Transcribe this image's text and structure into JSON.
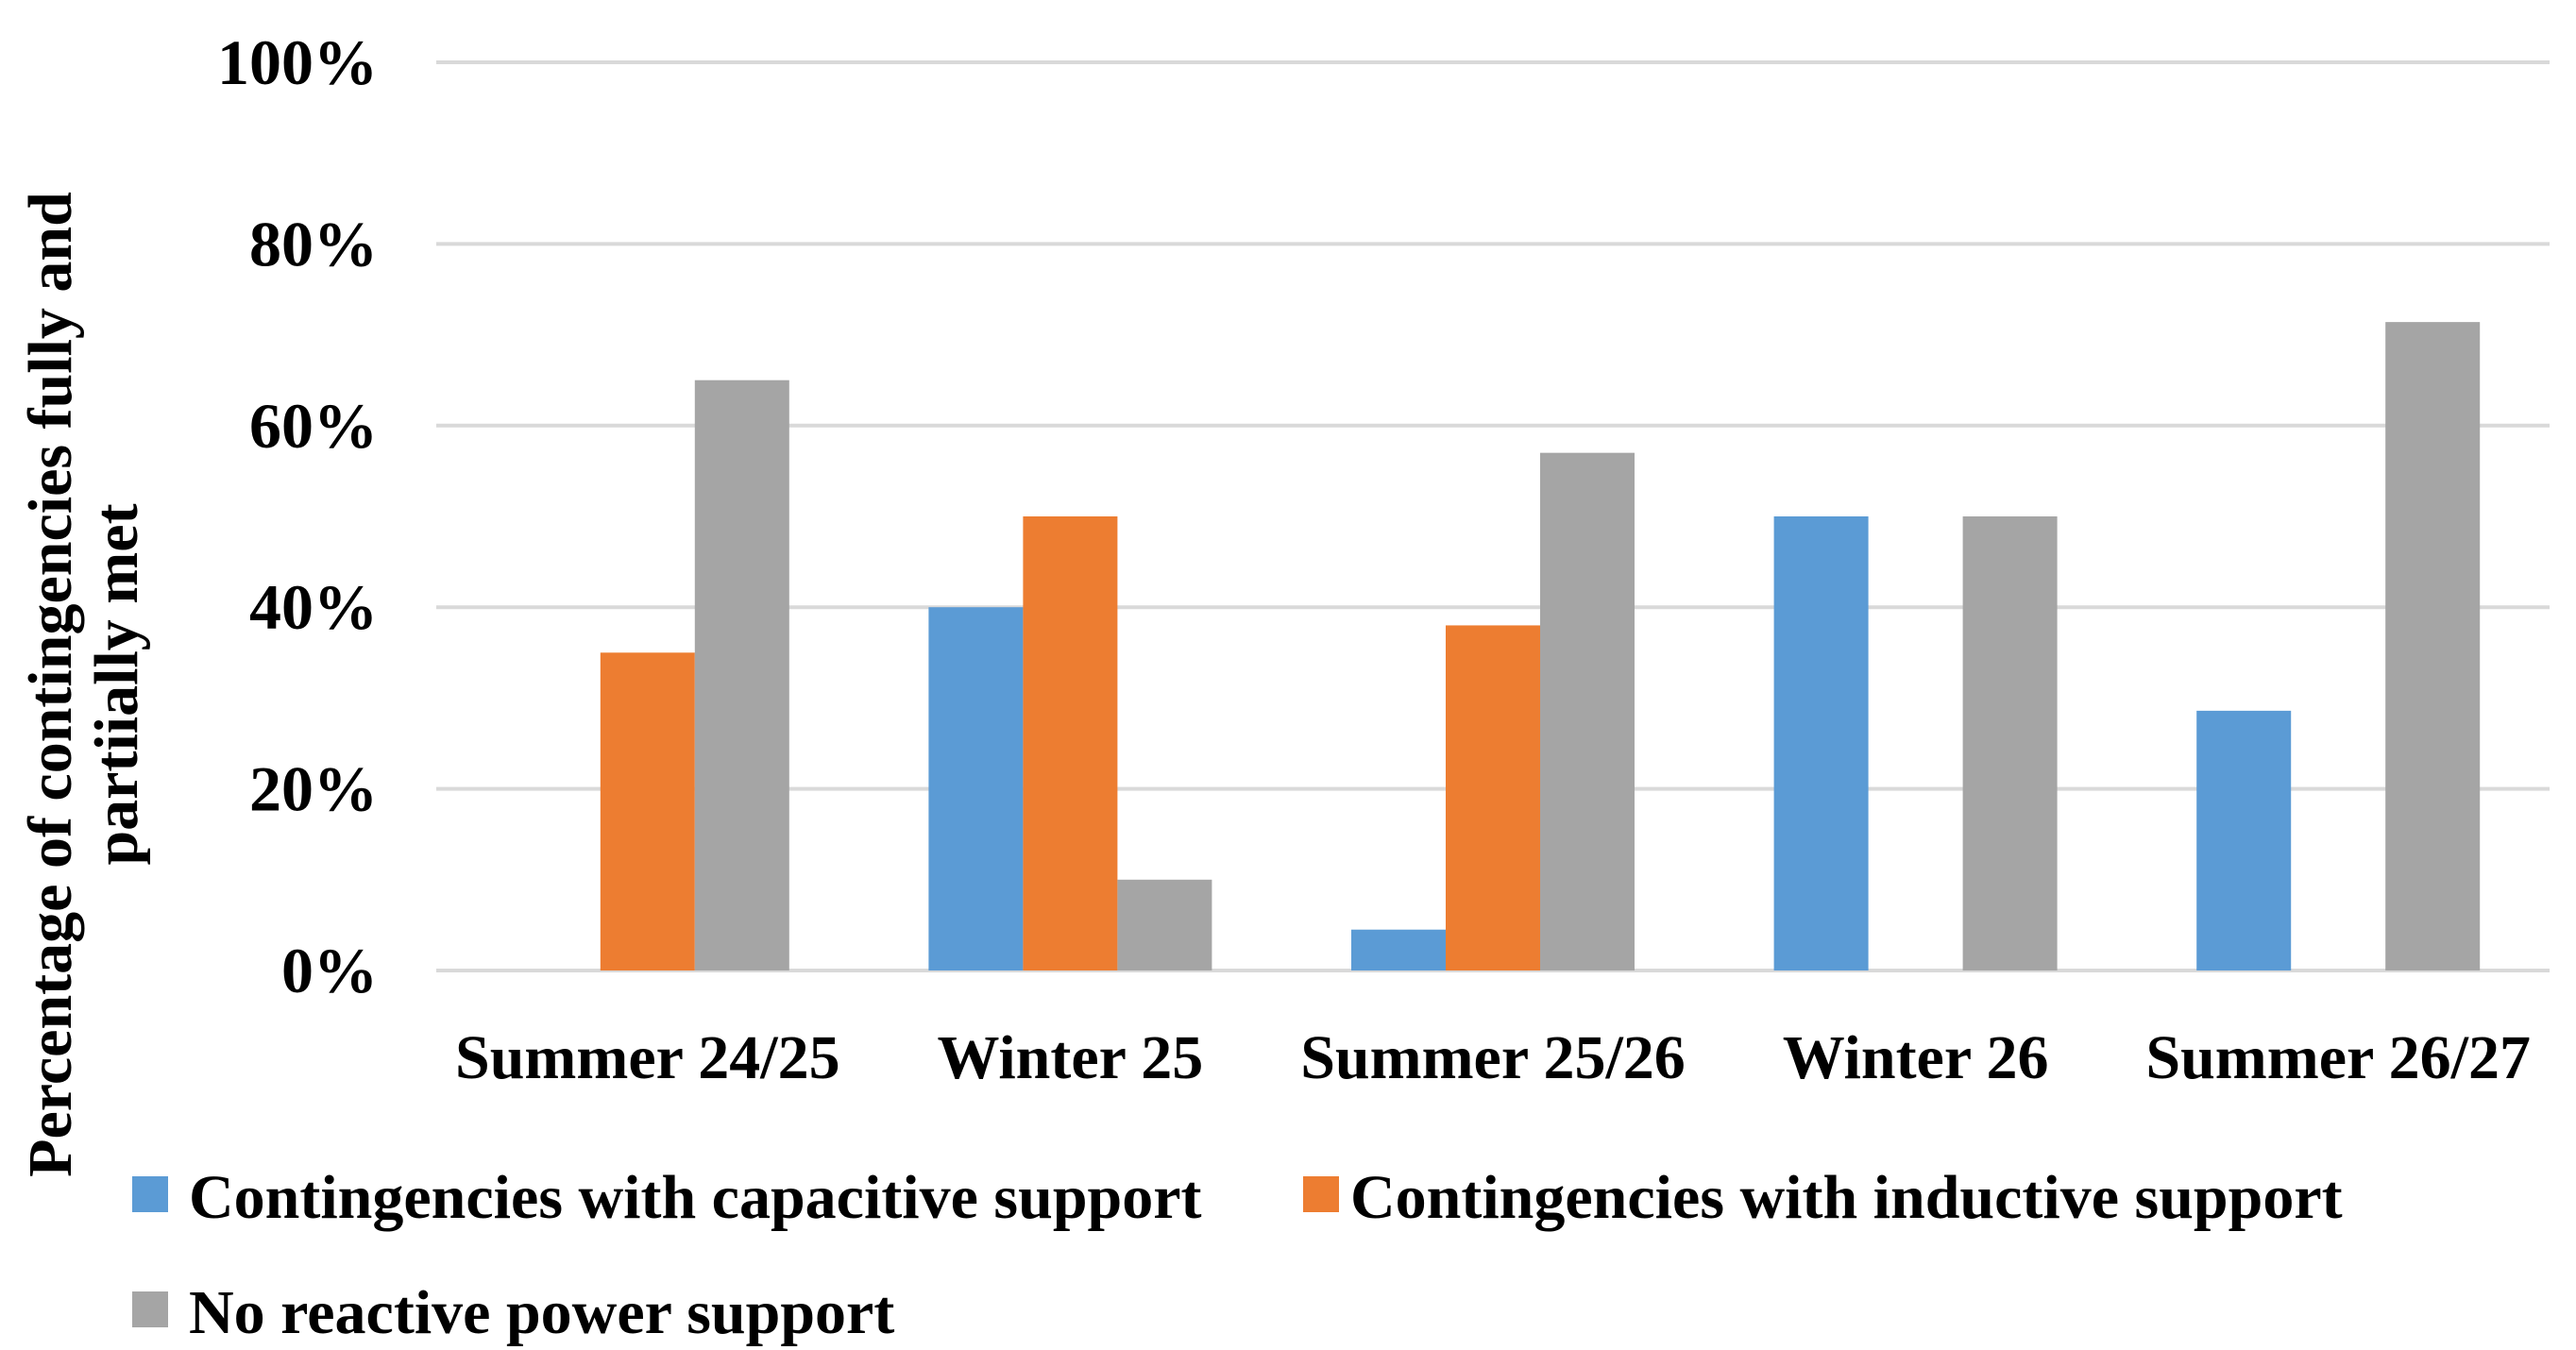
{
  "chart_data": {
    "type": "bar",
    "title": "",
    "xlabel": "",
    "ylabel": "Percentage of contingencies fully and partiially met",
    "ylabel_lines": [
      "Percentage of contingencies fully and",
      "partiially met"
    ],
    "ylim": [
      0,
      1
    ],
    "yticks": [
      0,
      0.2,
      0.4,
      0.6,
      0.8,
      1.0
    ],
    "ytick_labels": [
      "0%",
      "20%",
      "40%",
      "60%",
      "80%",
      "100%"
    ],
    "grid": true,
    "legend_position": "bottom",
    "categories": [
      "Summer 24/25",
      "Winter 25",
      "Summer 25/26",
      "Winter 26",
      "Summer 26/27"
    ],
    "series": [
      {
        "name": "Contingencies with capacitive support",
        "color": "#5B9BD5",
        "values": [
          0,
          0.4,
          0.045,
          0.5,
          0.286
        ]
      },
      {
        "name": "Contingencies with inductive support",
        "color": "#ED7D31",
        "values": [
          0.35,
          0.5,
          0.38,
          0,
          0
        ]
      },
      {
        "name": "No reactive power support",
        "color": "#A5A5A5",
        "values": [
          0.65,
          0.1,
          0.57,
          0.5,
          0.714
        ]
      }
    ]
  }
}
